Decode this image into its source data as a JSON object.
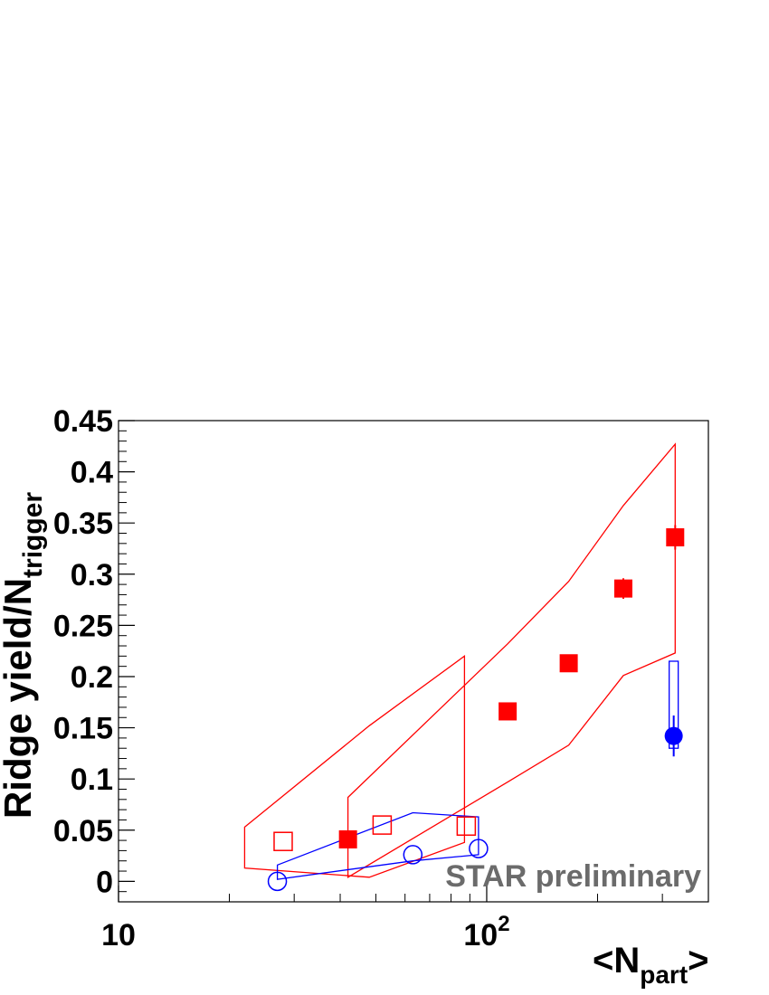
{
  "chart_data": {
    "type": "scatter",
    "x_scale": "log",
    "xlim": [
      10,
      400
    ],
    "ylim": [
      -0.02,
      0.45
    ],
    "x_tick_labels": [
      {
        "value": 10,
        "base": "10",
        "exp": ""
      },
      {
        "value": 100,
        "base": "10",
        "exp": "2"
      }
    ],
    "y_tick_labels": [
      "0",
      "0.05",
      "0.1",
      "0.15",
      "0.2",
      "0.25",
      "0.3",
      "0.35",
      "0.4",
      "0.45"
    ],
    "y_tick_values": [
      0,
      0.05,
      0.1,
      0.15,
      0.2,
      0.25,
      0.3,
      0.35,
      0.4,
      0.45
    ],
    "xlabel": {
      "pre": "<N",
      "sub": "part",
      "post": ">"
    },
    "ylabel": {
      "pre": "Ridge yield/N",
      "sub": "trigger"
    },
    "annotation": {
      "text": "STAR preliminary",
      "color": "#6b6b6b"
    },
    "colors": {
      "red": "#ff0000",
      "blue": "#0000ff"
    },
    "series": [
      {
        "marker": "square-filled",
        "color": "#ff0000",
        "points": [
          {
            "x": 42,
            "y": 0.041
          },
          {
            "x": 114,
            "y": 0.166
          },
          {
            "x": 167,
            "y": 0.213
          },
          {
            "x": 235,
            "y": 0.286,
            "yerr": 0.01
          },
          {
            "x": 325,
            "y": 0.336,
            "yerr": 0.012
          }
        ]
      },
      {
        "marker": "square-open",
        "color": "#ff0000",
        "points": [
          {
            "x": 28,
            "y": 0.039
          },
          {
            "x": 52,
            "y": 0.055
          },
          {
            "x": 88,
            "y": 0.054
          }
        ]
      },
      {
        "marker": "circle-open",
        "color": "#0000ff",
        "points": [
          {
            "x": 27,
            "y": 0.0
          },
          {
            "x": 63,
            "y": 0.026
          },
          {
            "x": 95,
            "y": 0.032
          }
        ]
      },
      {
        "marker": "circle-filled",
        "color": "#0000ff",
        "points": [
          {
            "x": 322,
            "y": 0.142,
            "yerr": 0.02
          }
        ]
      }
    ],
    "bands": [
      {
        "color": "#ff0000",
        "points": [
          [
            22,
            0.053
          ],
          [
            48,
            0.152
          ],
          [
            87,
            0.22
          ],
          [
            87,
            0.038
          ],
          [
            48,
            0.004
          ],
          [
            22,
            0.013
          ]
        ]
      },
      {
        "color": "#ff0000",
        "points": [
          [
            42,
            0.082
          ],
          [
            114,
            0.232
          ],
          [
            167,
            0.293
          ],
          [
            235,
            0.367
          ],
          [
            325,
            0.427
          ],
          [
            325,
            0.223
          ],
          [
            235,
            0.201
          ],
          [
            167,
            0.133
          ],
          [
            114,
            0.097
          ],
          [
            42,
            0.004
          ]
        ]
      },
      {
        "color": "#0000ff",
        "points": [
          [
            27,
            0.016
          ],
          [
            63,
            0.067
          ],
          [
            95,
            0.063
          ],
          [
            95,
            0.026
          ],
          [
            63,
            0.02
          ],
          [
            27,
            0.002
          ]
        ]
      }
    ],
    "syst_boxes": [
      {
        "color": "#0000ff",
        "x": 322,
        "y_low": 0.13,
        "y_high": 0.215
      }
    ]
  }
}
